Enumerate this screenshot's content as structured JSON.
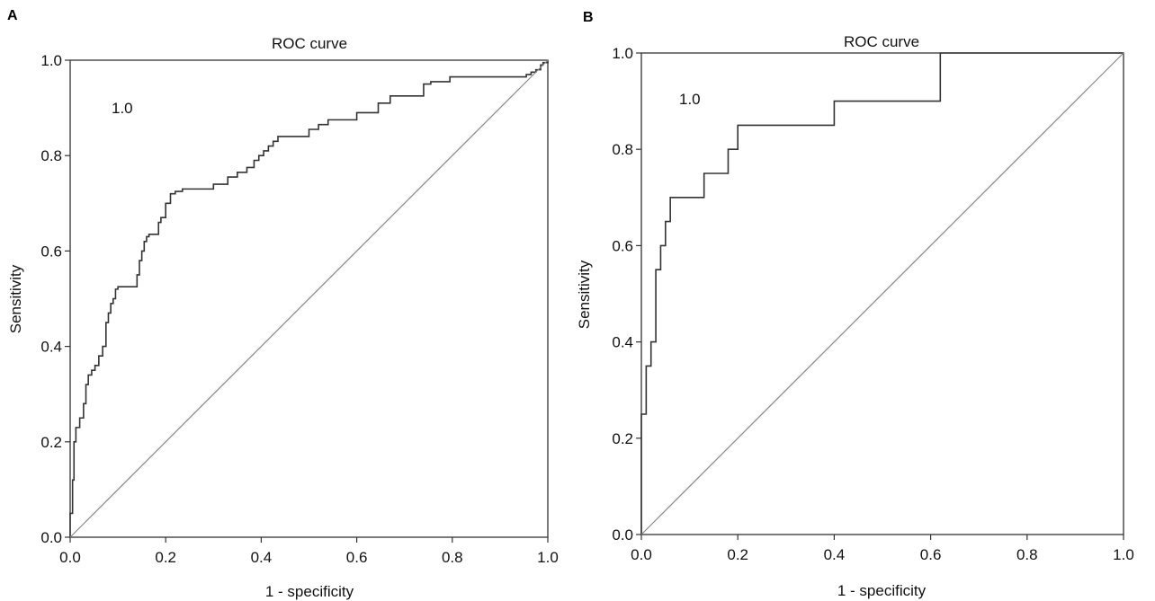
{
  "chart_data": [
    {
      "panel": "A",
      "type": "line",
      "title": "ROC curve",
      "xlabel": "1 - specificity",
      "ylabel": "Sensitivity",
      "xlim": [
        0,
        1
      ],
      "ylim": [
        0,
        1
      ],
      "xticks": [
        "0.0",
        "0.2",
        "0.4",
        "0.6",
        "0.8",
        "1.0"
      ],
      "yticks": [
        "0.0",
        "0.2",
        "0.4",
        "0.6",
        "0.8",
        "1.0"
      ],
      "annotation": "1.0",
      "grid": false,
      "series": [
        {
          "role": "roc",
          "color": "#333333",
          "x": [
            0.0,
            0.0,
            0.005,
            0.005,
            0.008,
            0.008,
            0.012,
            0.012,
            0.02,
            0.02,
            0.028,
            0.028,
            0.033,
            0.033,
            0.038,
            0.038,
            0.045,
            0.045,
            0.052,
            0.052,
            0.06,
            0.06,
            0.068,
            0.068,
            0.075,
            0.075,
            0.08,
            0.08,
            0.085,
            0.085,
            0.09,
            0.09,
            0.095,
            0.095,
            0.1,
            0.1,
            0.14,
            0.14,
            0.145,
            0.145,
            0.15,
            0.15,
            0.155,
            0.155,
            0.16,
            0.16,
            0.165,
            0.165,
            0.185,
            0.185,
            0.19,
            0.19,
            0.2,
            0.2,
            0.21,
            0.21,
            0.22,
            0.22,
            0.235,
            0.235,
            0.3,
            0.3,
            0.33,
            0.33,
            0.35,
            0.35,
            0.37,
            0.37,
            0.385,
            0.385,
            0.395,
            0.395,
            0.405,
            0.405,
            0.415,
            0.415,
            0.425,
            0.425,
            0.435,
            0.435,
            0.5,
            0.5,
            0.52,
            0.52,
            0.54,
            0.54,
            0.6,
            0.6,
            0.645,
            0.645,
            0.67,
            0.67,
            0.74,
            0.74,
            0.755,
            0.755,
            0.795,
            0.795,
            0.955,
            0.955,
            0.965,
            0.965,
            0.975,
            0.975,
            0.985,
            0.985,
            0.99,
            0.99,
            1.0,
            1.0
          ],
          "y": [
            0.0,
            0.05,
            0.05,
            0.12,
            0.12,
            0.2,
            0.2,
            0.23,
            0.23,
            0.25,
            0.25,
            0.28,
            0.28,
            0.32,
            0.32,
            0.34,
            0.34,
            0.35,
            0.35,
            0.36,
            0.36,
            0.38,
            0.38,
            0.4,
            0.4,
            0.45,
            0.45,
            0.47,
            0.47,
            0.49,
            0.49,
            0.5,
            0.5,
            0.52,
            0.52,
            0.525,
            0.525,
            0.55,
            0.55,
            0.58,
            0.58,
            0.6,
            0.6,
            0.62,
            0.62,
            0.63,
            0.63,
            0.635,
            0.635,
            0.66,
            0.66,
            0.67,
            0.67,
            0.7,
            0.7,
            0.72,
            0.72,
            0.725,
            0.725,
            0.73,
            0.73,
            0.74,
            0.74,
            0.755,
            0.755,
            0.765,
            0.765,
            0.775,
            0.775,
            0.79,
            0.79,
            0.8,
            0.8,
            0.81,
            0.81,
            0.82,
            0.82,
            0.83,
            0.83,
            0.84,
            0.84,
            0.855,
            0.855,
            0.865,
            0.865,
            0.875,
            0.875,
            0.89,
            0.89,
            0.91,
            0.91,
            0.925,
            0.925,
            0.95,
            0.95,
            0.955,
            0.955,
            0.965,
            0.965,
            0.97,
            0.97,
            0.975,
            0.975,
            0.98,
            0.98,
            0.99,
            0.99,
            0.995,
            0.995,
            1.0
          ]
        },
        {
          "role": "reference",
          "color": "#888888",
          "x": [
            0,
            1
          ],
          "y": [
            0,
            1
          ]
        }
      ]
    },
    {
      "panel": "B",
      "type": "line",
      "title": "ROC curve",
      "xlabel": "1 - specificity",
      "ylabel": "Sensitivity",
      "xlim": [
        0,
        1
      ],
      "ylim": [
        0,
        1
      ],
      "xticks": [
        "0.0",
        "0.2",
        "0.4",
        "0.6",
        "0.8",
        "1.0"
      ],
      "yticks": [
        "0.0",
        "0.2",
        "0.4",
        "0.6",
        "0.8",
        "1.0"
      ],
      "annotation": "1.0",
      "grid": false,
      "series": [
        {
          "role": "roc",
          "color": "#333333",
          "x": [
            0.0,
            0.0,
            0.01,
            0.01,
            0.02,
            0.02,
            0.03,
            0.03,
            0.04,
            0.04,
            0.05,
            0.05,
            0.06,
            0.06,
            0.13,
            0.13,
            0.18,
            0.18,
            0.2,
            0.2,
            0.22,
            0.22,
            0.4,
            0.4,
            0.62,
            0.62,
            1.0
          ],
          "y": [
            0.0,
            0.25,
            0.25,
            0.35,
            0.35,
            0.4,
            0.4,
            0.55,
            0.55,
            0.6,
            0.6,
            0.65,
            0.65,
            0.7,
            0.7,
            0.75,
            0.75,
            0.8,
            0.8,
            0.85,
            0.85,
            0.85,
            0.85,
            0.9,
            0.9,
            1.0,
            1.0
          ]
        },
        {
          "role": "reference",
          "color": "#888888",
          "x": [
            0,
            1
          ],
          "y": [
            0,
            1
          ]
        }
      ]
    }
  ]
}
